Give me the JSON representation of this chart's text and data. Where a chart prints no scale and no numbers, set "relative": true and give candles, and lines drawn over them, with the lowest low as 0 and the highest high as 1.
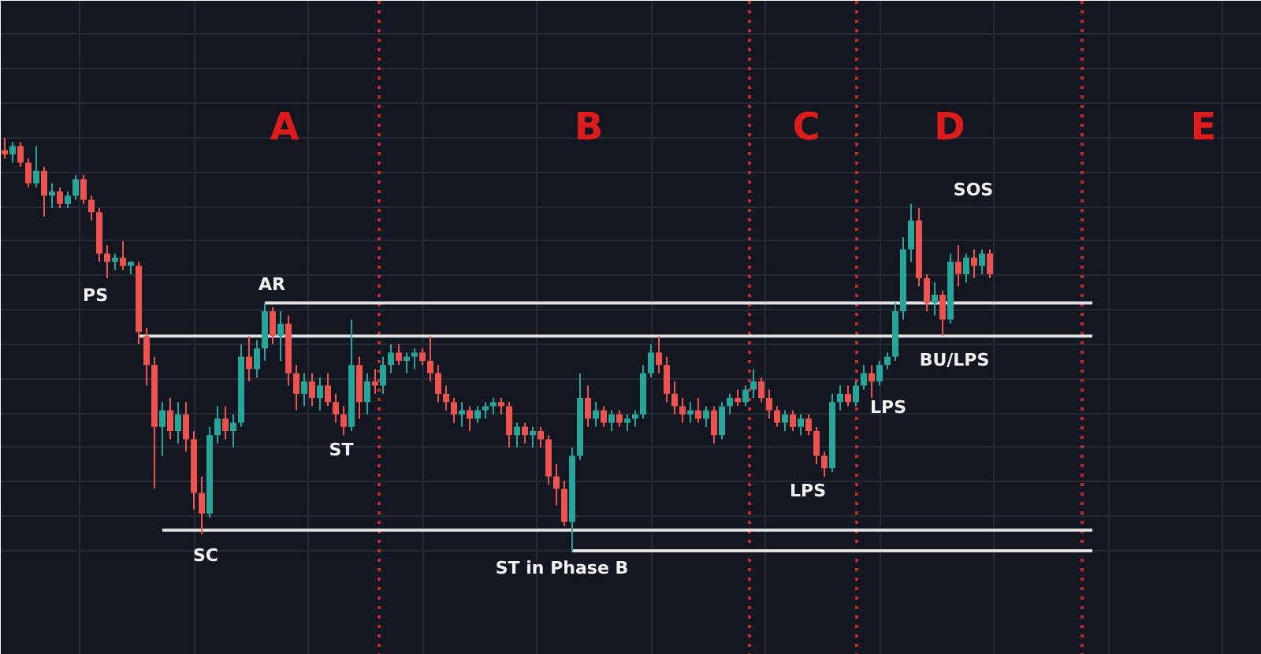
{
  "chart_data": {
    "type": "candlestick",
    "relative": true,
    "grid": true,
    "categories": [
      null,
      null,
      null,
      null,
      null,
      null,
      null,
      null,
      null,
      null,
      null,
      null,
      null,
      null,
      null,
      null,
      null,
      null,
      null,
      null,
      null,
      null,
      null,
      null,
      null,
      null,
      null,
      null,
      null,
      null,
      null,
      null,
      null,
      null,
      null,
      null,
      null,
      null,
      null,
      null,
      null,
      null,
      null,
      null,
      null,
      null,
      null,
      null,
      null,
      null,
      null,
      null,
      null,
      null,
      null,
      null,
      null,
      null,
      null,
      null,
      null,
      null,
      null,
      null,
      null,
      null,
      null,
      null,
      null,
      null,
      null,
      null,
      null,
      null,
      null,
      null,
      null,
      null,
      null,
      null,
      null,
      null,
      null,
      null,
      null,
      null,
      null,
      null,
      null,
      null,
      null,
      null,
      null,
      null,
      null,
      null,
      null,
      null,
      null,
      null,
      null,
      null,
      null,
      null,
      null,
      null,
      null,
      null,
      null,
      null,
      null,
      null,
      null,
      null,
      null,
      null,
      null,
      null,
      null,
      null,
      null,
      null,
      null,
      null,
      null,
      null,
      null,
      null,
      null,
      null,
      null,
      null,
      null,
      null,
      null,
      null,
      null,
      null,
      null,
      null,
      null,
      null,
      null,
      null,
      null,
      null,
      null,
      null,
      null,
      null,
      null,
      null,
      null,
      null,
      null,
      null,
      null,
      null,
      null,
      null
    ],
    "ohlc": [
      [
        0.97,
        1,
        0.95,
        0.96
      ],
      [
        0.96,
        0.99,
        0.94,
        0.98
      ],
      [
        0.98,
        0.99,
        0.93,
        0.94
      ],
      [
        0.94,
        0.95,
        0.88,
        0.89
      ],
      [
        0.89,
        0.98,
        0.88,
        0.92
      ],
      [
        0.92,
        0.93,
        0.81,
        0.86
      ],
      [
        0.86,
        0.89,
        0.83,
        0.87
      ],
      [
        0.87,
        0.88,
        0.83,
        0.84
      ],
      [
        0.84,
        0.87,
        0.83,
        0.86
      ],
      [
        0.86,
        0.91,
        0.85,
        0.9
      ],
      [
        0.9,
        0.91,
        0.84,
        0.85
      ],
      [
        0.85,
        0.86,
        0.8,
        0.82
      ],
      [
        0.82,
        0.83,
        0.7,
        0.72
      ],
      [
        0.72,
        0.74,
        0.66,
        0.7
      ],
      [
        0.7,
        0.72,
        0.68,
        0.71
      ],
      [
        0.71,
        0.75,
        0.68,
        0.69
      ],
      [
        0.69,
        0.7,
        0.67,
        0.7
      ],
      [
        0.69,
        0.7,
        0.5,
        0.53
      ],
      [
        0.52,
        0.54,
        0.4,
        0.45
      ],
      [
        0.45,
        0.47,
        0.15,
        0.3
      ],
      [
        0.3,
        0.36,
        0.23,
        0.34
      ],
      [
        0.34,
        0.37,
        0.27,
        0.29
      ],
      [
        0.29,
        0.36,
        0.26,
        0.33
      ],
      [
        0.33,
        0.36,
        0.24,
        0.27
      ],
      [
        0.27,
        0.29,
        0.1,
        0.14
      ],
      [
        0.14,
        0.18,
        0.04,
        0.09
      ],
      [
        0.09,
        0.3,
        0.08,
        0.28
      ],
      [
        0.28,
        0.35,
        0.26,
        0.32
      ],
      [
        0.32,
        0.35,
        0.27,
        0.29
      ],
      [
        0.29,
        0.33,
        0.25,
        0.31
      ],
      [
        0.31,
        0.5,
        0.3,
        0.47
      ],
      [
        0.47,
        0.52,
        0.41,
        0.44
      ],
      [
        0.44,
        0.51,
        0.42,
        0.49
      ],
      [
        0.49,
        0.6,
        0.46,
        0.58
      ],
      [
        0.58,
        0.59,
        0.5,
        0.52
      ],
      [
        0.52,
        0.58,
        0.46,
        0.55
      ],
      [
        0.55,
        0.57,
        0.4,
        0.43
      ],
      [
        0.43,
        0.45,
        0.34,
        0.38
      ],
      [
        0.38,
        0.43,
        0.35,
        0.41
      ],
      [
        0.41,
        0.43,
        0.35,
        0.37
      ],
      [
        0.37,
        0.42,
        0.34,
        0.4
      ],
      [
        0.4,
        0.43,
        0.35,
        0.36
      ],
      [
        0.36,
        0.38,
        0.31,
        0.33
      ],
      [
        0.33,
        0.35,
        0.28,
        0.3
      ],
      [
        0.3,
        0.56,
        0.29,
        0.45
      ],
      [
        0.45,
        0.47,
        0.32,
        0.36
      ],
      [
        0.36,
        0.43,
        0.33,
        0.41
      ],
      [
        0.41,
        0.44,
        0.38,
        0.4
      ],
      [
        0.4,
        0.47,
        0.38,
        0.45
      ],
      [
        0.45,
        0.5,
        0.43,
        0.48
      ],
      [
        0.48,
        0.5,
        0.45,
        0.46
      ],
      [
        0.46,
        0.48,
        0.43,
        0.47
      ],
      [
        0.47,
        0.49,
        0.44,
        0.48
      ],
      [
        0.48,
        0.49,
        0.45,
        0.46
      ],
      [
        0.46,
        0.52,
        0.41,
        0.43
      ],
      [
        0.43,
        0.45,
        0.36,
        0.38
      ],
      [
        0.38,
        0.4,
        0.34,
        0.36
      ],
      [
        0.36,
        0.37,
        0.31,
        0.33
      ],
      [
        0.33,
        0.36,
        0.3,
        0.34
      ],
      [
        0.34,
        0.35,
        0.29,
        0.32
      ],
      [
        0.32,
        0.35,
        0.31,
        0.34
      ],
      [
        0.34,
        0.36,
        0.32,
        0.35
      ],
      [
        0.35,
        0.37,
        0.33,
        0.36
      ],
      [
        0.36,
        0.37,
        0.33,
        0.35
      ],
      [
        0.35,
        0.36,
        0.25,
        0.28
      ],
      [
        0.28,
        0.31,
        0.25,
        0.3
      ],
      [
        0.3,
        0.31,
        0.26,
        0.28
      ],
      [
        0.28,
        0.3,
        0.25,
        0.29
      ],
      [
        0.29,
        0.3,
        0.25,
        0.27
      ],
      [
        0.27,
        0.28,
        0.16,
        0.18
      ],
      [
        0.18,
        0.21,
        0.11,
        0.15
      ],
      [
        0.15,
        0.17,
        0.06,
        0.07
      ],
      [
        0.07,
        0.25,
        0,
        0.23
      ],
      [
        0.23,
        0.43,
        0.22,
        0.37
      ],
      [
        0.37,
        0.4,
        0.3,
        0.32
      ],
      [
        0.32,
        0.36,
        0.3,
        0.34
      ],
      [
        0.34,
        0.35,
        0.3,
        0.31
      ],
      [
        0.31,
        0.34,
        0.29,
        0.33
      ],
      [
        0.33,
        0.34,
        0.3,
        0.31
      ],
      [
        0.31,
        0.33,
        0.29,
        0.32
      ],
      [
        0.32,
        0.34,
        0.3,
        0.33
      ],
      [
        0.33,
        0.45,
        0.32,
        0.43
      ],
      [
        0.43,
        0.5,
        0.42,
        0.48
      ],
      [
        0.48,
        0.52,
        0.43,
        0.45
      ],
      [
        0.45,
        0.47,
        0.36,
        0.38
      ],
      [
        0.38,
        0.41,
        0.33,
        0.35
      ],
      [
        0.35,
        0.37,
        0.31,
        0.33
      ],
      [
        0.33,
        0.36,
        0.31,
        0.34
      ],
      [
        0.34,
        0.37,
        0.31,
        0.32
      ],
      [
        0.32,
        0.35,
        0.3,
        0.34
      ],
      [
        0.34,
        0.35,
        0.26,
        0.28
      ],
      [
        0.28,
        0.36,
        0.27,
        0.35
      ],
      [
        0.35,
        0.38,
        0.33,
        0.37
      ],
      [
        0.37,
        0.39,
        0.35,
        0.36
      ],
      [
        0.36,
        0.4,
        0.35,
        0.39
      ],
      [
        0.39,
        0.44,
        0.37,
        0.41
      ],
      [
        0.41,
        0.42,
        0.36,
        0.37
      ],
      [
        0.37,
        0.39,
        0.32,
        0.34
      ],
      [
        0.34,
        0.35,
        0.3,
        0.31
      ],
      [
        0.31,
        0.34,
        0.29,
        0.33
      ],
      [
        0.33,
        0.34,
        0.29,
        0.3
      ],
      [
        0.3,
        0.33,
        0.28,
        0.32
      ],
      [
        0.32,
        0.33,
        0.28,
        0.29
      ],
      [
        0.29,
        0.3,
        0.21,
        0.23
      ],
      [
        0.23,
        0.24,
        0.18,
        0.2
      ],
      [
        0.2,
        0.38,
        0.19,
        0.36
      ],
      [
        0.36,
        0.4,
        0.34,
        0.38
      ],
      [
        0.38,
        0.4,
        0.35,
        0.36
      ],
      [
        0.36,
        0.41,
        0.35,
        0.4
      ],
      [
        0.4,
        0.45,
        0.39,
        0.43
      ],
      [
        0.43,
        0.45,
        0.37,
        0.41
      ],
      [
        0.41,
        0.46,
        0.4,
        0.45
      ],
      [
        0.45,
        0.48,
        0.44,
        0.47
      ],
      [
        0.47,
        0.6,
        0.46,
        0.58
      ],
      [
        0.58,
        0.76,
        0.56,
        0.73
      ],
      [
        0.73,
        0.84,
        0.7,
        0.8
      ],
      [
        0.8,
        0.83,
        0.64,
        0.66
      ],
      [
        0.66,
        0.67,
        0.58,
        0.6
      ],
      [
        0.6,
        0.65,
        0.57,
        0.62
      ],
      [
        0.62,
        0.63,
        0.52,
        0.56
      ],
      [
        0.56,
        0.72,
        0.55,
        0.7
      ],
      [
        0.7,
        0.74,
        0.64,
        0.67
      ],
      [
        0.67,
        0.72,
        0.65,
        0.71
      ],
      [
        0.71,
        0.73,
        0.66,
        0.69
      ],
      [
        0.69,
        0.73,
        0.67,
        0.72
      ],
      [
        0.72,
        0.73,
        0.66,
        0.67
      ],
      null,
      null,
      null,
      null,
      null,
      null,
      null,
      null,
      null,
      null,
      null,
      null,
      null,
      null,
      null,
      null,
      null,
      null,
      null,
      null,
      null,
      null,
      null,
      null,
      null,
      null,
      null,
      null,
      null,
      null,
      null,
      null,
      null,
      null
    ],
    "colors": [
      "#ef5350",
      "#26a69a",
      "#ef5350",
      "#ef5350",
      "#26a69a",
      "#ef5350",
      "#26a69a",
      "#ef5350",
      "#26a69a",
      "#26a69a",
      "#ef5350",
      "#ef5350",
      "#ef5350",
      "#ef5350",
      "#26a69a",
      "#ef5350",
      "#26a69a",
      "#ef5350",
      "#ef5350",
      "#ef5350",
      "#26a69a",
      "#ef5350",
      "#26a69a",
      "#ef5350",
      "#ef5350",
      "#ef5350",
      "#26a69a",
      "#26a69a",
      "#ef5350",
      "#26a69a",
      "#26a69a",
      "#ef5350",
      "#26a69a",
      "#26a69a",
      "#ef5350",
      "#26a69a",
      "#ef5350",
      "#ef5350",
      "#26a69a",
      "#ef5350",
      "#26a69a",
      "#ef5350",
      "#ef5350",
      "#ef5350",
      "#26a69a",
      "#ef5350",
      "#26a69a",
      "#ef5350",
      "#26a69a",
      "#26a69a",
      "#ef5350",
      "#26a69a",
      "#26a69a",
      "#ef5350",
      "#ef5350",
      "#ef5350",
      "#ef5350",
      "#ef5350",
      "#26a69a",
      "#ef5350",
      "#26a69a",
      "#26a69a",
      "#26a69a",
      "#ef5350",
      "#ef5350",
      "#26a69a",
      "#ef5350",
      "#26a69a",
      "#ef5350",
      "#ef5350",
      "#ef5350",
      "#ef5350",
      "#26a69a",
      "#26a69a",
      "#ef5350",
      "#26a69a",
      "#ef5350",
      "#26a69a",
      "#ef5350",
      "#26a69a",
      "#26a69a",
      "#26a69a",
      "#26a69a",
      "#ef5350",
      "#ef5350",
      "#ef5350",
      "#ef5350",
      "#26a69a",
      "#ef5350",
      "#26a69a",
      "#ef5350",
      "#26a69a",
      "#26a69a",
      "#ef5350",
      "#26a69a",
      "#26a69a",
      "#ef5350",
      "#ef5350",
      "#ef5350",
      "#26a69a",
      "#ef5350",
      "#26a69a",
      "#ef5350",
      "#ef5350",
      "#ef5350",
      "#26a69a",
      "#26a69a",
      "#ef5350",
      "#26a69a",
      "#26a69a",
      "#ef5350",
      "#26a69a",
      "#26a69a",
      "#26a69a",
      "#26a69a",
      "#26a69a",
      "#ef5350",
      "#ef5350",
      "#26a69a",
      "#ef5350",
      "#26a69a",
      "#ef5350",
      "#26a69a",
      "#ef5350",
      "#26a69a",
      "#ef5350",
      null,
      null,
      null,
      null,
      null,
      null,
      null,
      null,
      null,
      null,
      null,
      null,
      null,
      null,
      null,
      null,
      null,
      null,
      null,
      null,
      null,
      null,
      null,
      null,
      null,
      null,
      null,
      null,
      null,
      null,
      null,
      null,
      null,
      null
    ],
    "series": [
      {
        "type": "line",
        "color": "#e0e0e0",
        "values": [
          null,
          null,
          null,
          null,
          null,
          null,
          null,
          null,
          null,
          null,
          null,
          null,
          null,
          null,
          null,
          null,
          null,
          null,
          null,
          null,
          null,
          null,
          null,
          null,
          null,
          null,
          null,
          null,
          null,
          null,
          null,
          null,
          null,
          0.6,
          0.6,
          0.6,
          0.6,
          0.6,
          0.6,
          0.6,
          0.6,
          0.6,
          0.6,
          0.6,
          0.6,
          0.6,
          0.6,
          0.6,
          0.6,
          0.6,
          0.6,
          0.6,
          0.6,
          0.6,
          0.6,
          0.6,
          0.6,
          0.6,
          0.6,
          0.6,
          0.6,
          0.6,
          0.6,
          0.6,
          0.6,
          0.6,
          0.6,
          0.6,
          0.6,
          0.6,
          0.6,
          0.6,
          0.6,
          0.6,
          0.6,
          0.6,
          0.6,
          0.6,
          0.6,
          0.6,
          0.6,
          0.6,
          0.6,
          0.6,
          0.6,
          0.6,
          0.6,
          0.6,
          0.6,
          0.6,
          0.6,
          0.6,
          0.6,
          0.6,
          0.6,
          0.6,
          0.6,
          0.6,
          0.6,
          0.6,
          0.6,
          0.6,
          0.6,
          0.6,
          0.6,
          0.6,
          0.6,
          0.6,
          0.6,
          0.6,
          0.6,
          0.6,
          0.6,
          0.6,
          0.6,
          0.6,
          0.6,
          0.6,
          0.6,
          0.6,
          0.6,
          0.6,
          0.6,
          0.6,
          0.6,
          0.6,
          0.6,
          0.6,
          0.6,
          0.6,
          0.6,
          0.6,
          0.6,
          0.6,
          0.6,
          0.6,
          0.6,
          0.6,
          0.6,
          null,
          null,
          null,
          null,
          null,
          null,
          null,
          null,
          null,
          null,
          null,
          null,
          null,
          null,
          null,
          null,
          null,
          null,
          null,
          null,
          null
        ]
      },
      {
        "type": "line",
        "color": "#e0e0e0",
        "values": [
          null,
          null,
          null,
          null,
          null,
          null,
          null,
          null,
          null,
          null,
          null,
          null,
          null,
          null,
          null,
          null,
          null,
          0.52,
          0.52,
          0.52,
          0.52,
          0.52,
          0.52,
          0.52,
          0.52,
          0.52,
          0.52,
          0.52,
          0.52,
          0.52,
          0.52,
          0.52,
          0.52,
          0.52,
          0.52,
          0.52,
          0.52,
          0.52,
          0.52,
          0.52,
          0.52,
          0.52,
          0.52,
          0.52,
          0.52,
          0.52,
          0.52,
          0.52,
          0.52,
          0.52,
          0.52,
          0.52,
          0.52,
          0.52,
          0.52,
          0.52,
          0.52,
          0.52,
          0.52,
          0.52,
          0.52,
          0.52,
          0.52,
          0.52,
          0.52,
          0.52,
          0.52,
          0.52,
          0.52,
          0.52,
          0.52,
          0.52,
          0.52,
          0.52,
          0.52,
          0.52,
          0.52,
          0.52,
          0.52,
          0.52,
          0.52,
          0.52,
          0.52,
          0.52,
          0.52,
          0.52,
          0.52,
          0.52,
          0.52,
          0.52,
          0.52,
          0.52,
          0.52,
          0.52,
          0.52,
          0.52,
          0.52,
          0.52,
          0.52,
          0.52,
          0.52,
          0.52,
          0.52,
          0.52,
          0.52,
          0.52,
          0.52,
          0.52,
          0.52,
          0.52,
          0.52,
          0.52,
          0.52,
          0.52,
          0.52,
          0.52,
          0.52,
          0.52,
          0.52,
          0.52,
          0.52,
          0.52,
          0.52,
          0.52,
          0.52,
          0.52,
          0.52,
          0.52,
          0.52,
          0.52,
          0.52,
          0.52,
          0.52,
          0.52,
          0.52,
          0.52,
          0.52,
          0.52,
          0.52,
          null,
          null,
          null,
          null,
          null,
          null,
          null,
          null,
          null,
          null,
          null,
          null,
          null,
          null,
          null,
          null,
          null,
          null,
          null,
          null,
          null
        ]
      },
      {
        "type": "line",
        "color": "#e0e0e0",
        "values": [
          null,
          null,
          null,
          null,
          null,
          null,
          null,
          null,
          null,
          null,
          null,
          null,
          null,
          null,
          null,
          null,
          null,
          null,
          null,
          null,
          0.05,
          0.05,
          0.05,
          0.05,
          0.05,
          0.05,
          0.05,
          0.05,
          0.05,
          0.05,
          0.05,
          0.05,
          0.05,
          0.05,
          0.05,
          0.05,
          0.05,
          0.05,
          0.05,
          0.05,
          0.05,
          0.05,
          0.05,
          0.05,
          0.05,
          0.05,
          0.05,
          0.05,
          0.05,
          0.05,
          0.05,
          0.05,
          0.05,
          0.05,
          0.05,
          0.05,
          0.05,
          0.05,
          0.05,
          0.05,
          0.05,
          0.05,
          0.05,
          0.05,
          0.05,
          0.05,
          0.05,
          0.05,
          0.05,
          0.05,
          0.05,
          0.05,
          0.05,
          0.05,
          0.05,
          0.05,
          0.05,
          0.05,
          0.05,
          0.05,
          0.05,
          0.05,
          0.05,
          0.05,
          0.05,
          0.05,
          0.05,
          0.05,
          0.05,
          0.05,
          0.05,
          0.05,
          0.05,
          0.05,
          0.05,
          0.05,
          0.05,
          0.05,
          0.05,
          0.05,
          0.05,
          0.05,
          0.05,
          0.05,
          0.05,
          0.05,
          0.05,
          0.05,
          0.05,
          0.05,
          0.05,
          0.05,
          0.05,
          0.05,
          0.05,
          0.05,
          0.05,
          0.05,
          0.05,
          0.05,
          0.05,
          0.05,
          0.05,
          0.05,
          0.05,
          0.05,
          0.05,
          0.05,
          0.05,
          0.05,
          0.05,
          0.05,
          0.05,
          0.05,
          0.05,
          0.05,
          0.05,
          0.05,
          0.05,
          null,
          null,
          null,
          null,
          null,
          null,
          null,
          null,
          null,
          null,
          null,
          null,
          null,
          null,
          null,
          null,
          null,
          null,
          null,
          null,
          null
        ]
      },
      {
        "type": "line",
        "color": "#e0e0e0",
        "values": [
          null,
          null,
          null,
          null,
          null,
          null,
          null,
          null,
          null,
          null,
          null,
          null,
          null,
          null,
          null,
          null,
          null,
          null,
          null,
          null,
          null,
          null,
          null,
          null,
          null,
          null,
          null,
          null,
          null,
          null,
          null,
          null,
          null,
          null,
          null,
          null,
          null,
          null,
          null,
          null,
          null,
          null,
          null,
          null,
          null,
          null,
          null,
          null,
          null,
          null,
          null,
          null,
          null,
          null,
          null,
          null,
          null,
          null,
          null,
          null,
          null,
          null,
          null,
          null,
          null,
          null,
          null,
          null,
          null,
          null,
          null,
          null,
          0,
          0,
          0,
          0,
          0,
          0,
          0,
          0,
          0,
          0,
          0,
          0,
          0,
          0,
          0,
          0,
          0,
          0,
          0,
          0,
          0,
          0,
          0,
          0,
          0,
          0,
          0,
          0,
          0,
          0,
          0,
          0,
          0,
          0,
          0,
          0,
          0,
          0,
          0,
          0,
          0,
          0,
          0,
          0,
          0,
          0,
          0,
          0,
          0,
          0,
          0,
          0,
          0,
          0,
          0,
          0,
          0,
          0,
          0,
          0,
          0,
          0,
          0,
          0,
          0,
          0,
          0,
          null,
          null,
          null,
          null,
          null,
          null,
          null,
          null,
          null,
          null,
          null,
          null,
          null,
          null,
          null,
          null,
          null,
          null,
          null,
          null,
          null
        ]
      }
    ],
    "annotations": [
      "A",
      "B",
      "C",
      "D",
      "E",
      "SOS",
      "AR",
      "PS",
      "BU/LPS",
      "LPS",
      "ST",
      "LPS",
      "SC",
      "ST in Phase B"
    ]
  }
}
